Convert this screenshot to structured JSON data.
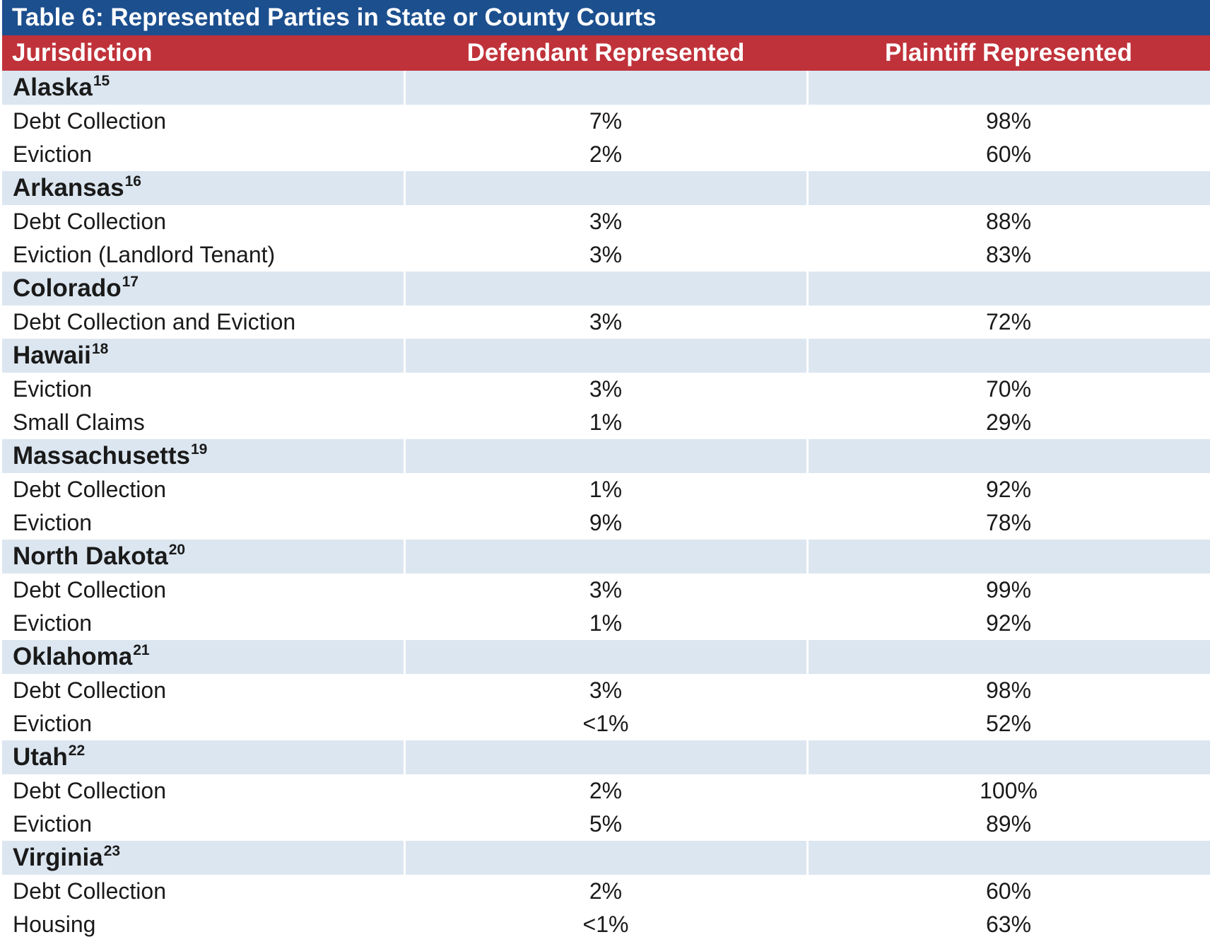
{
  "title": "Table 6: Represented Parties in State or County Courts",
  "headers": [
    "Jurisdiction",
    "Defendant Represented",
    "Plaintiff Represented"
  ],
  "groups": [
    {
      "name": "Alaska",
      "note": "15",
      "rows": [
        {
          "category": "Debt Collection",
          "defendant": "7%",
          "plaintiff": "98%"
        },
        {
          "category": "Eviction",
          "defendant": "2%",
          "plaintiff": "60%"
        }
      ]
    },
    {
      "name": "Arkansas",
      "note": "16",
      "rows": [
        {
          "category": "Debt Collection",
          "defendant": "3%",
          "plaintiff": "88%"
        },
        {
          "category": "Eviction (Landlord Tenant)",
          "defendant": "3%",
          "plaintiff": "83%"
        }
      ]
    },
    {
      "name": "Colorado",
      "note": "17",
      "rows": [
        {
          "category": "Debt Collection and Eviction",
          "defendant": "3%",
          "plaintiff": "72%"
        }
      ]
    },
    {
      "name": "Hawaii",
      "note": "18",
      "rows": [
        {
          "category": "Eviction",
          "defendant": "3%",
          "plaintiff": "70%"
        },
        {
          "category": "Small Claims",
          "defendant": "1%",
          "plaintiff": "29%"
        }
      ]
    },
    {
      "name": "Massachusetts",
      "note": "19",
      "rows": [
        {
          "category": "Debt Collection",
          "defendant": "1%",
          "plaintiff": "92%"
        },
        {
          "category": "Eviction",
          "defendant": "9%",
          "plaintiff": "78%"
        }
      ]
    },
    {
      "name": "North Dakota",
      "note": "20",
      "rows": [
        {
          "category": "Debt Collection",
          "defendant": "3%",
          "plaintiff": "99%"
        },
        {
          "category": "Eviction",
          "defendant": "1%",
          "plaintiff": "92%"
        }
      ]
    },
    {
      "name": "Oklahoma",
      "note": "21",
      "rows": [
        {
          "category": "Debt Collection",
          "defendant": "3%",
          "plaintiff": "98%"
        },
        {
          "category": "Eviction",
          "defendant": "<1%",
          "plaintiff": "52%"
        }
      ]
    },
    {
      "name": "Utah",
      "note": "22",
      "rows": [
        {
          "category": "Debt Collection",
          "defendant": "2%",
          "plaintiff": "100%"
        },
        {
          "category": "Eviction",
          "defendant": "5%",
          "plaintiff": "89%"
        }
      ]
    },
    {
      "name": "Virginia",
      "note": "23",
      "rows": [
        {
          "category": "Debt Collection",
          "defendant": "2%",
          "plaintiff": "60%"
        },
        {
          "category": "Housing",
          "defendant": "<1%",
          "plaintiff": "63%"
        }
      ]
    }
  ],
  "colors": {
    "title_bar": "#1c4f8e",
    "header_bar": "#c0323a",
    "group_row": "#dce6f0"
  }
}
